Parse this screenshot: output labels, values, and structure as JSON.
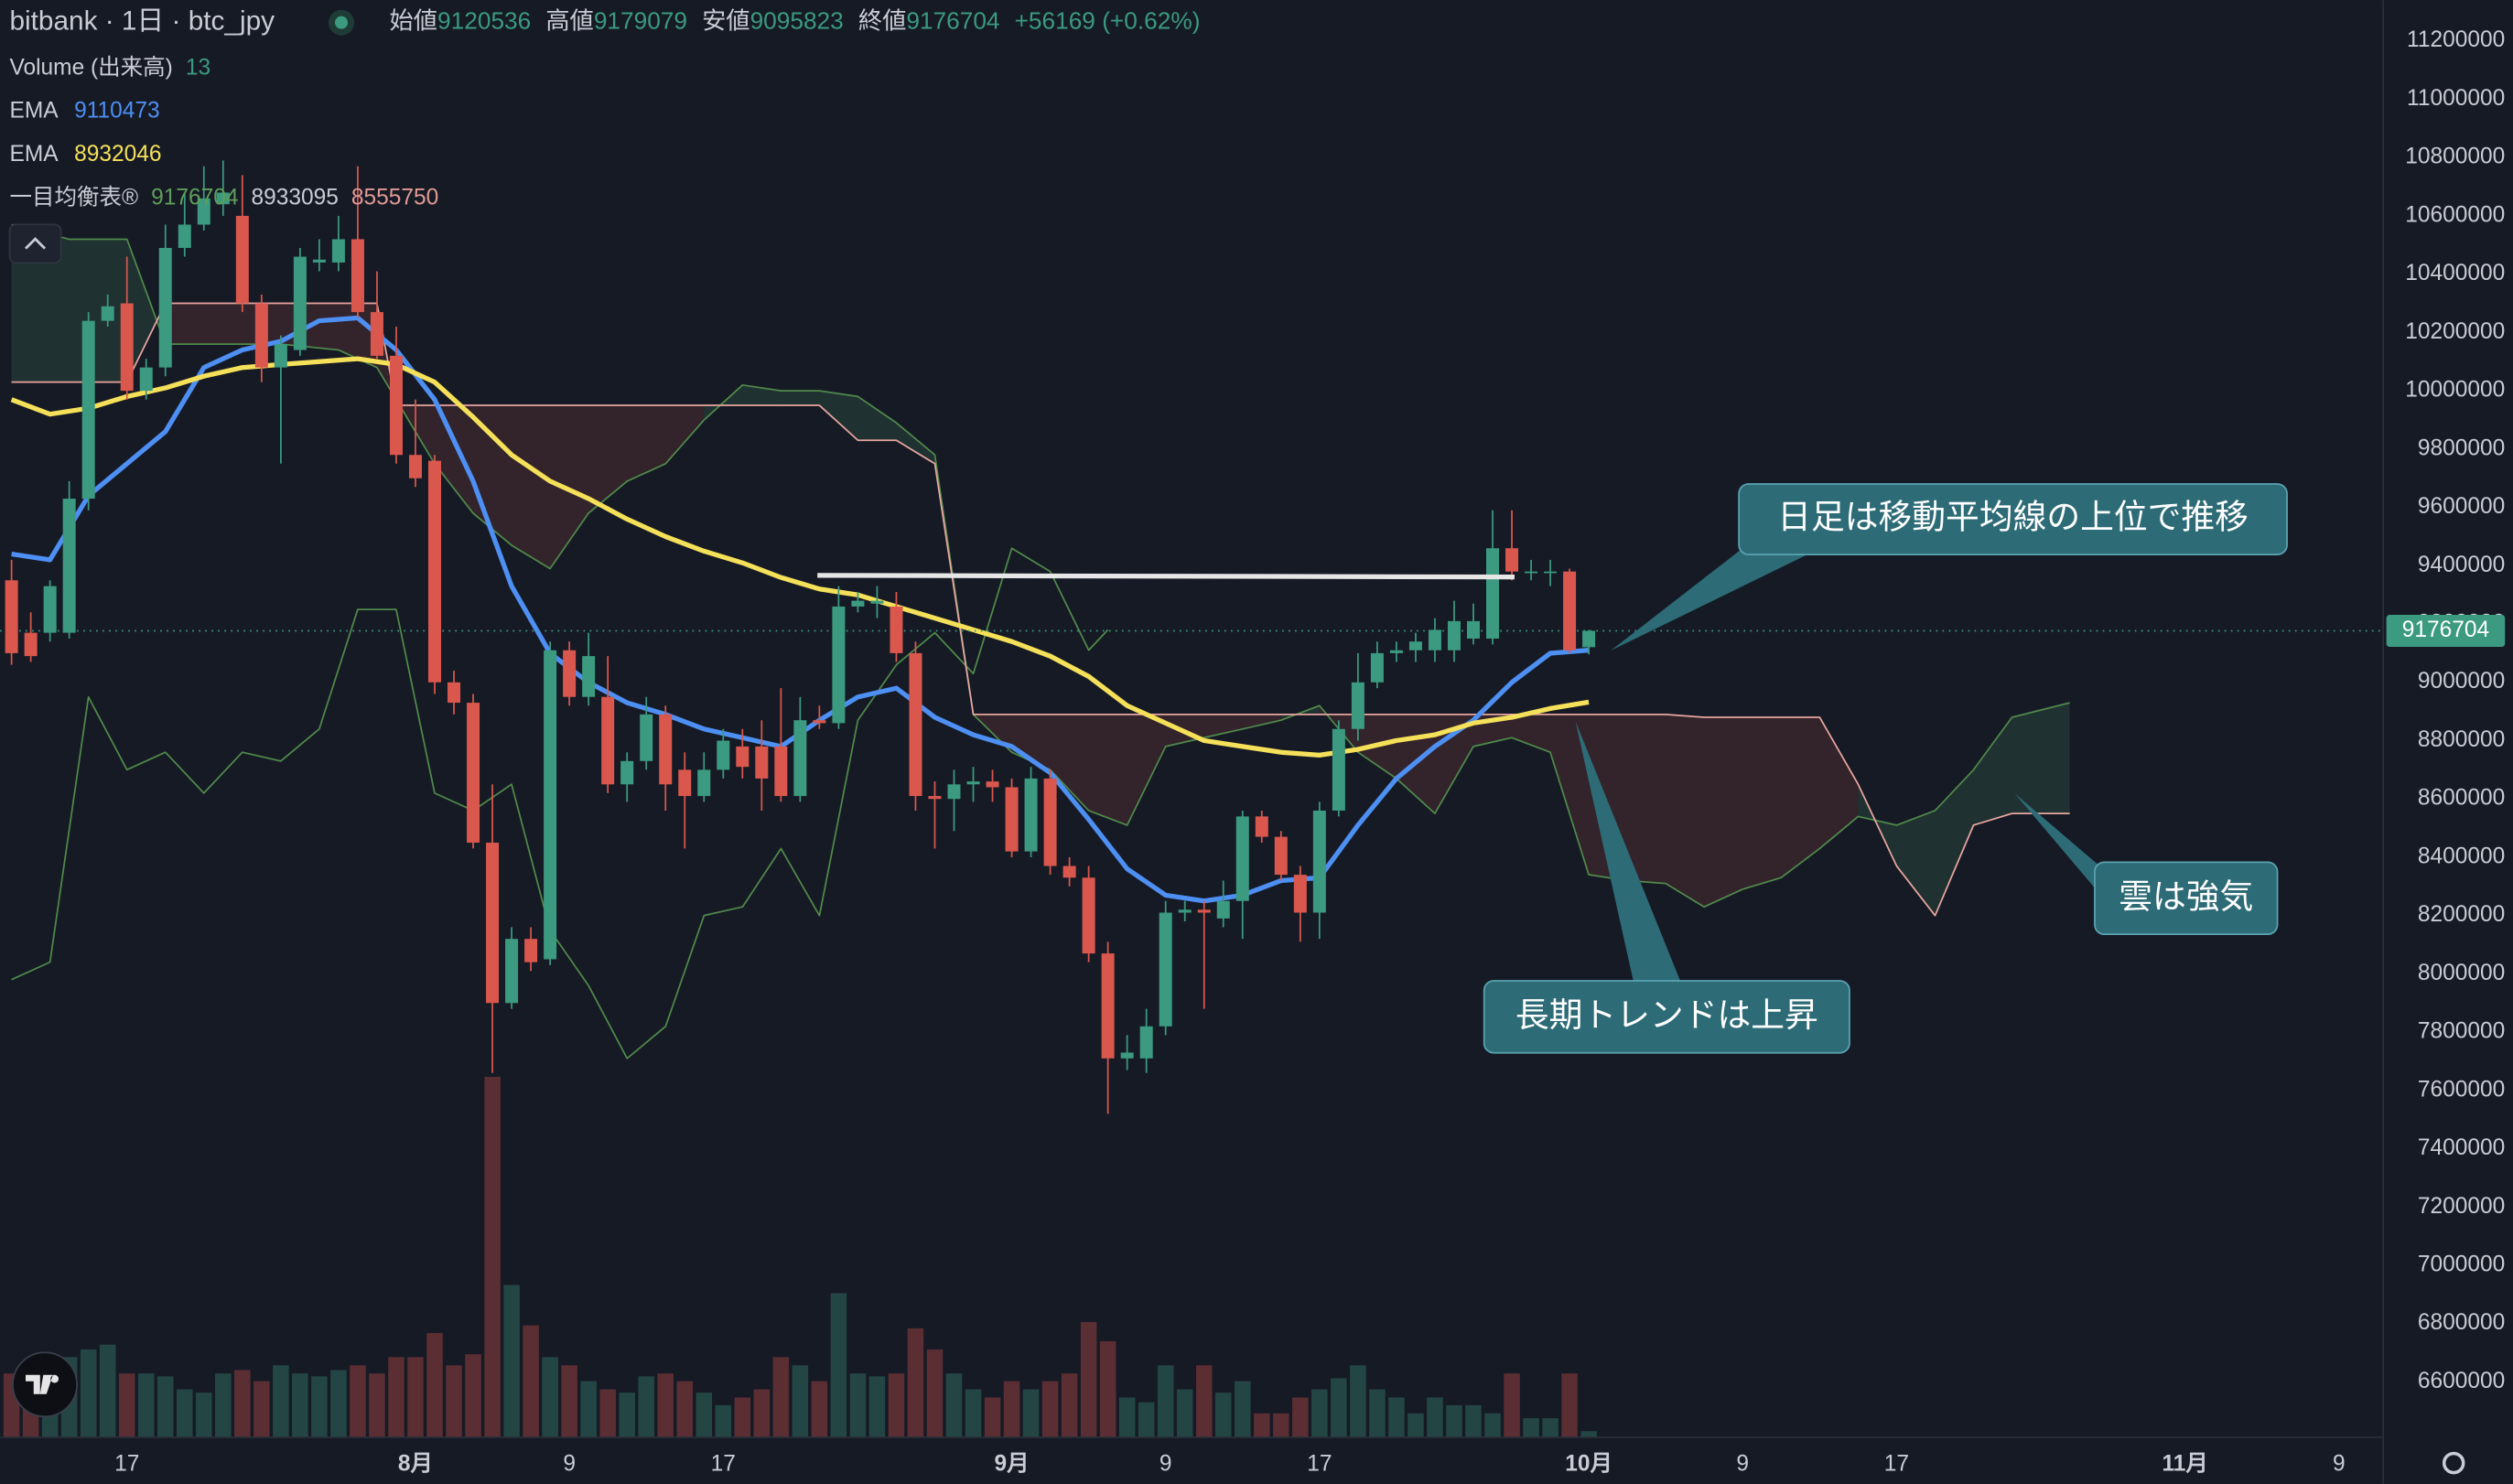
{
  "chart_data": {
    "type": "candlestick",
    "title": "bitbank · 1日 · btc_jpy",
    "ohlc_labels": [
      "始値",
      "高値",
      "安値",
      "終値"
    ],
    "change": "+56169 (+0.62%)",
    "x": [
      11,
      12,
      13,
      14,
      15,
      16,
      17,
      18,
      19,
      20,
      21,
      22,
      23,
      24,
      25,
      26,
      27,
      28,
      29,
      30,
      31,
      32,
      33,
      34,
      35,
      36,
      37,
      38,
      39,
      40,
      41,
      42,
      43,
      44,
      45,
      46,
      47,
      48,
      49,
      50,
      51,
      52,
      53,
      54,
      55,
      56,
      57,
      58,
      59,
      60,
      61,
      62,
      63,
      64,
      65,
      66,
      67,
      68,
      69,
      70,
      71,
      72,
      73,
      74,
      75,
      76,
      77,
      78,
      79,
      80,
      81,
      82,
      83,
      84,
      85,
      86,
      87,
      88,
      89,
      90,
      91,
      92,
      93
    ],
    "open": [
      9350000,
      9170000,
      9170000,
      9170000,
      9630000,
      10240000,
      10300000,
      10000000,
      10080000,
      10490000,
      10570000,
      10640000,
      10600000,
      10300000,
      10080000,
      10140000,
      10440000,
      10440000,
      10520000,
      10270000,
      10120000,
      9780000,
      9760000,
      9000000,
      8930000,
      8450000,
      7900000,
      8120000,
      8050000,
      9110000,
      8950000,
      8950000,
      8650000,
      8730000,
      8890000,
      8700000,
      8610000,
      8700000,
      8780000,
      8780000,
      8780000,
      8610000,
      8870000,
      8860000,
      9260000,
      9270000,
      9260000,
      9100000,
      8610000,
      8600000,
      8650000,
      8660000,
      8640000,
      8420000,
      8670000,
      8370000,
      8330000,
      8070000,
      7710000,
      7710000,
      7820000,
      8210000,
      8220000,
      8190000,
      8250000,
      8540000,
      8470000,
      8340000,
      8210000,
      8560000,
      8840000,
      9000000,
      9100000,
      9110000,
      9110000,
      9110000,
      9150000,
      9150000,
      9460000,
      9380000,
      9380000,
      9380000,
      9120536
    ],
    "high": [
      9420000,
      9240000,
      9350000,
      9690000,
      10270000,
      10330000,
      10460000,
      10110000,
      10570000,
      10680000,
      10770000,
      10790000,
      10740000,
      10330000,
      10190000,
      10490000,
      10520000,
      10600000,
      10770000,
      10410000,
      10220000,
      9970000,
      9780000,
      9040000,
      8960000,
      8650000,
      8160000,
      8160000,
      9140000,
      9140000,
      9170000,
      9090000,
      8760000,
      8950000,
      8920000,
      8760000,
      8760000,
      8840000,
      8840000,
      8870000,
      8980000,
      8950000,
      8920000,
      9330000,
      9310000,
      9330000,
      9310000,
      9140000,
      8660000,
      8700000,
      8710000,
      8700000,
      8670000,
      8710000,
      8700000,
      8400000,
      8370000,
      8110000,
      7790000,
      7880000,
      8250000,
      8250000,
      8250000,
      8320000,
      8560000,
      8560000,
      8490000,
      8370000,
      8590000,
      8870000,
      9100000,
      9140000,
      9140000,
      9170000,
      9220000,
      9280000,
      9270000,
      9590000,
      9590000,
      9420000,
      9420000,
      9390000,
      9179079
    ],
    "low": [
      9060000,
      9070000,
      9140000,
      9150000,
      9590000,
      10220000,
      9970000,
      9970000,
      10050000,
      10460000,
      10550000,
      10600000,
      10270000,
      10030000,
      9750000,
      10120000,
      10410000,
      10410000,
      10250000,
      10110000,
      9750000,
      9670000,
      8960000,
      8890000,
      8430000,
      7660000,
      7880000,
      8010000,
      8030000,
      8920000,
      8920000,
      8620000,
      8590000,
      8700000,
      8560000,
      8430000,
      8590000,
      8670000,
      8670000,
      8560000,
      8590000,
      8590000,
      8840000,
      8840000,
      9240000,
      9220000,
      9070000,
      8560000,
      8430000,
      8490000,
      8590000,
      8590000,
      8400000,
      8400000,
      8340000,
      8300000,
      8040000,
      7520000,
      7670000,
      7660000,
      7790000,
      8180000,
      7880000,
      8160000,
      8120000,
      8450000,
      8320000,
      8110000,
      8120000,
      8540000,
      8800000,
      8980000,
      9070000,
      9070000,
      9070000,
      9070000,
      9130000,
      9130000,
      9350000,
      9350000,
      9330000,
      9100000,
      9095823
    ],
    "close": [
      9100000,
      9090000,
      9330000,
      9630000,
      10240000,
      10290000,
      10000000,
      10080000,
      10490000,
      10570000,
      10660000,
      10680000,
      10300000,
      10080000,
      10160000,
      10460000,
      10450000,
      10520000,
      10270000,
      10120000,
      9780000,
      9700000,
      9000000,
      8930000,
      8450000,
      7900000,
      8120000,
      8040000,
      9110000,
      8950000,
      9090000,
      8650000,
      8730000,
      8890000,
      8650000,
      8610000,
      8700000,
      8800000,
      8710000,
      8670000,
      8610000,
      8870000,
      8860000,
      9260000,
      9280000,
      9280000,
      9100000,
      8610000,
      8600000,
      8650000,
      8660000,
      8640000,
      8420000,
      8670000,
      8370000,
      8330000,
      8070000,
      7710000,
      7730000,
      7820000,
      8210000,
      8220000,
      8210000,
      8250000,
      8540000,
      8470000,
      8340000,
      8210000,
      8560000,
      8840000,
      9000000,
      9100000,
      9110000,
      9140000,
      9180000,
      9210000,
      9210000,
      9460000,
      9380000,
      9380000,
      9380000,
      9110000,
      9176704
    ],
    "up_color": "#3b9a7f",
    "down_color": "#d9574d",
    "volume": {
      "name": "Volume (出来高)",
      "values": [
        133,
        150,
        117,
        167,
        183,
        193,
        133,
        133,
        127,
        100,
        93,
        133,
        140,
        117,
        150,
        133,
        127,
        140,
        150,
        133,
        167,
        167,
        217,
        150,
        173,
        750,
        317,
        233,
        167,
        150,
        117,
        100,
        93,
        127,
        133,
        117,
        93,
        67,
        83,
        100,
        167,
        150,
        117,
        300,
        133,
        127,
        133,
        227,
        183,
        133,
        100,
        83,
        117,
        100,
        117,
        133,
        240,
        200,
        83,
        73,
        150,
        100,
        150,
        93,
        117,
        50,
        50,
        83,
        100,
        123,
        150,
        100,
        83,
        50,
        83,
        67,
        67,
        50,
        133,
        40,
        40,
        133,
        13
      ]
    },
    "ema": [
      {
        "name": "EMA",
        "color": "#4d8ff2",
        "x": [
          11,
          13,
          15,
          17,
          19,
          21,
          23,
          25,
          27,
          29,
          31,
          33,
          35,
          37,
          39,
          41,
          43,
          45,
          47,
          49,
          51,
          53,
          55,
          57,
          59,
          61,
          63,
          65,
          67,
          69,
          71,
          73,
          75,
          77,
          79,
          81,
          83,
          85,
          87,
          89,
          91,
          93
        ],
        "values": [
          9440000,
          9420000,
          9640000,
          9750000,
          9860000,
          10080000,
          10140000,
          10170000,
          10240000,
          10250000,
          10140000,
          9970000,
          9690000,
          9330000,
          9100000,
          9000000,
          8930000,
          8890000,
          8840000,
          8810000,
          8780000,
          8870000,
          8950000,
          8980000,
          8880000,
          8820000,
          8780000,
          8690000,
          8530000,
          8360000,
          8270000,
          8250000,
          8270000,
          8320000,
          8330000,
          8510000,
          8670000,
          8780000,
          8870000,
          9000000,
          9100000,
          9110473
        ]
      },
      {
        "name": "EMA",
        "color": "#f5e05a",
        "x": [
          11,
          13,
          15,
          17,
          19,
          21,
          23,
          25,
          27,
          29,
          31,
          33,
          35,
          37,
          39,
          41,
          43,
          45,
          47,
          49,
          51,
          53,
          55,
          57,
          59,
          61,
          63,
          65,
          67,
          69,
          71,
          73,
          75,
          77,
          79,
          81,
          83,
          85,
          87,
          89,
          91,
          93
        ],
        "values": [
          9970000,
          9920000,
          9940000,
          9980000,
          10010000,
          10050000,
          10080000,
          10090000,
          10100000,
          10110000,
          10090000,
          10030000,
          9910000,
          9780000,
          9690000,
          9630000,
          9560000,
          9500000,
          9450000,
          9410000,
          9360000,
          9320000,
          9300000,
          9260000,
          9220000,
          9180000,
          9140000,
          9090000,
          9020000,
          8920000,
          8860000,
          8800000,
          8780000,
          8760000,
          8750000,
          8770000,
          8800000,
          8820000,
          8860000,
          8880000,
          8910000,
          8932046
        ]
      }
    ],
    "ichimoku": {
      "name": "一目均衡表®",
      "legend_values": [
        9176704,
        8933095,
        8555750
      ],
      "legend_colors": [
        "#5f9e5a",
        "#c9ccd4",
        "#e29a94"
      ],
      "lagging": {
        "color": "#4f8a4a",
        "x": [
          11,
          13,
          15,
          17,
          19,
          21,
          23,
          25,
          27,
          29,
          31,
          33,
          35,
          37,
          39,
          41,
          43,
          45,
          47,
          49,
          51,
          53,
          55,
          57,
          59,
          61,
          63,
          65,
          67,
          68
        ],
        "values": [
          7980000,
          8040000,
          8950000,
          8700000,
          8760000,
          8620000,
          8760000,
          8730000,
          8840000,
          9250000,
          9250000,
          8620000,
          8560000,
          8650000,
          8150000,
          7960000,
          7710000,
          7820000,
          8200000,
          8230000,
          8430000,
          8200000,
          8870000,
          9060000,
          9170000,
          9030000,
          9460000,
          9380000,
          9110000,
          9180000
        ]
      },
      "cloud_x": [
        11,
        14,
        17,
        19,
        22,
        25,
        28,
        30,
        31,
        33,
        35,
        37,
        39,
        41,
        43,
        45,
        47,
        49,
        51,
        53,
        55,
        57,
        59,
        61,
        63,
        65,
        67,
        69,
        71,
        73,
        75,
        77,
        79,
        81,
        83,
        85,
        87,
        89,
        91,
        93,
        95,
        97,
        99,
        101,
        103,
        105,
        107,
        109,
        111,
        113,
        115,
        118
      ],
      "span_a": [
        10570000,
        10520000,
        10520000,
        10160000,
        10160000,
        10160000,
        10140000,
        10080000,
        9970000,
        9750000,
        9580000,
        9470000,
        9390000,
        9580000,
        9690000,
        9750000,
        9900000,
        10020000,
        10000000,
        10000000,
        9980000,
        9890000,
        9780000,
        8890000,
        8760000,
        8700000,
        8560000,
        8510000,
        8780000,
        8810000,
        8840000,
        8870000,
        8920000,
        8760000,
        8670000,
        8550000,
        8780000,
        8810000,
        8760000,
        8340000,
        8320000,
        8310000,
        8230000,
        8290000,
        8330000,
        8430000,
        8540000,
        8510000,
        8560000,
        8700000,
        8880000,
        8930000
      ],
      "span_b": [
        10030000,
        10030000,
        10030000,
        10300000,
        10300000,
        10300000,
        10300000,
        10300000,
        9950000,
        9950000,
        9950000,
        9950000,
        9950000,
        9950000,
        9950000,
        9950000,
        9950000,
        9950000,
        9950000,
        9950000,
        9830000,
        9830000,
        9750000,
        8890000,
        8890000,
        8890000,
        8890000,
        8890000,
        8890000,
        8890000,
        8890000,
        8890000,
        8890000,
        8890000,
        8890000,
        8890000,
        8890000,
        8890000,
        8890000,
        8890000,
        8890000,
        8890000,
        8880000,
        8880000,
        8880000,
        8880000,
        8650000,
        8370000,
        8200000,
        8510000,
        8550000,
        8550000
      ],
      "span_a_color": "#4f8a4a",
      "span_b_color": "#e8a6a0",
      "bull_fill": "rgba(70,130,95,0.22)",
      "bear_fill": "rgba(130,60,60,0.28)"
    },
    "xlim": [
      10.4,
      134.3
    ],
    "ylim": [
      6410000,
      11340000
    ],
    "yticks": [
      6600000,
      6800000,
      7000000,
      7200000,
      7400000,
      7600000,
      7800000,
      8000000,
      8200000,
      8400000,
      8600000,
      8800000,
      9000000,
      9200000,
      9400000,
      9600000,
      9800000,
      10000000,
      10200000,
      10400000,
      10600000,
      10800000,
      11000000,
      11200000
    ],
    "xticks": [
      17,
      {
        "value": 32,
        "label": "8月"
      },
      {
        "value": 40,
        "label": "9"
      },
      {
        "value": 48,
        "label": "17"
      },
      {
        "value": 63,
        "label": "9月"
      },
      {
        "value": 71,
        "label": "9"
      },
      {
        "value": 79,
        "label": "17"
      },
      {
        "value": 93,
        "label": "10月"
      },
      {
        "value": 101,
        "label": "9"
      },
      {
        "value": 109,
        "label": "17"
      },
      {
        "value": 124,
        "label": "11月"
      },
      {
        "value": 132,
        "label": "9"
      }
    ],
    "grid": false,
    "annotations": [
      "日足は移動平均線の上位で推移",
      "長期トレンドは上昇",
      "雲は強気"
    ]
  }
}
